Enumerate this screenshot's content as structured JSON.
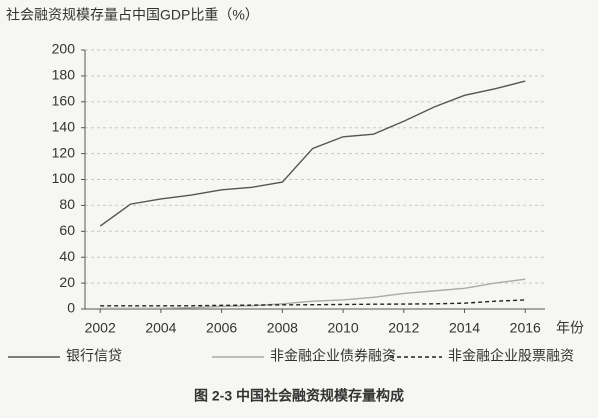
{
  "chart_data": {
    "type": "line",
    "title": "社会融资规模存量占中国GDP比重（%）",
    "x_label": "年份",
    "caption": "图 2-3    中国社会融资规模存量构成",
    "x": [
      2002,
      2003,
      2004,
      2005,
      2006,
      2007,
      2008,
      2009,
      2010,
      2011,
      2012,
      2013,
      2014,
      2015,
      2016
    ],
    "series": [
      {
        "name": "银行信贷",
        "color": "#555555",
        "dashed": false,
        "values": [
          64,
          81,
          85,
          88,
          92,
          94,
          98,
          124,
          133,
          135,
          145,
          156,
          165,
          170,
          176
        ]
      },
      {
        "name": "非金融企业债券融资",
        "color": "#aaaaaa",
        "dashed": false,
        "values": [
          0.5,
          0.5,
          0.5,
          1,
          2,
          2.5,
          4,
          6,
          7,
          9,
          12,
          14,
          16,
          20,
          23
        ]
      },
      {
        "name": "非金融企业股票融资",
        "color": "#222222",
        "dashed": true,
        "values": [
          2.5,
          2.5,
          2.5,
          2.5,
          2.8,
          3,
          3.2,
          3.3,
          3.5,
          3.7,
          3.8,
          4,
          4.5,
          6,
          7
        ]
      }
    ],
    "xlim": [
      2001.5,
      2016.65
    ],
    "xticks": [
      2002,
      2004,
      2006,
      2008,
      2010,
      2012,
      2014,
      2016
    ],
    "ylim": [
      0,
      200
    ],
    "yticks": [
      0,
      20,
      40,
      60,
      80,
      100,
      120,
      140,
      160,
      180,
      200
    ],
    "grid": true,
    "legend": "bottom"
  }
}
